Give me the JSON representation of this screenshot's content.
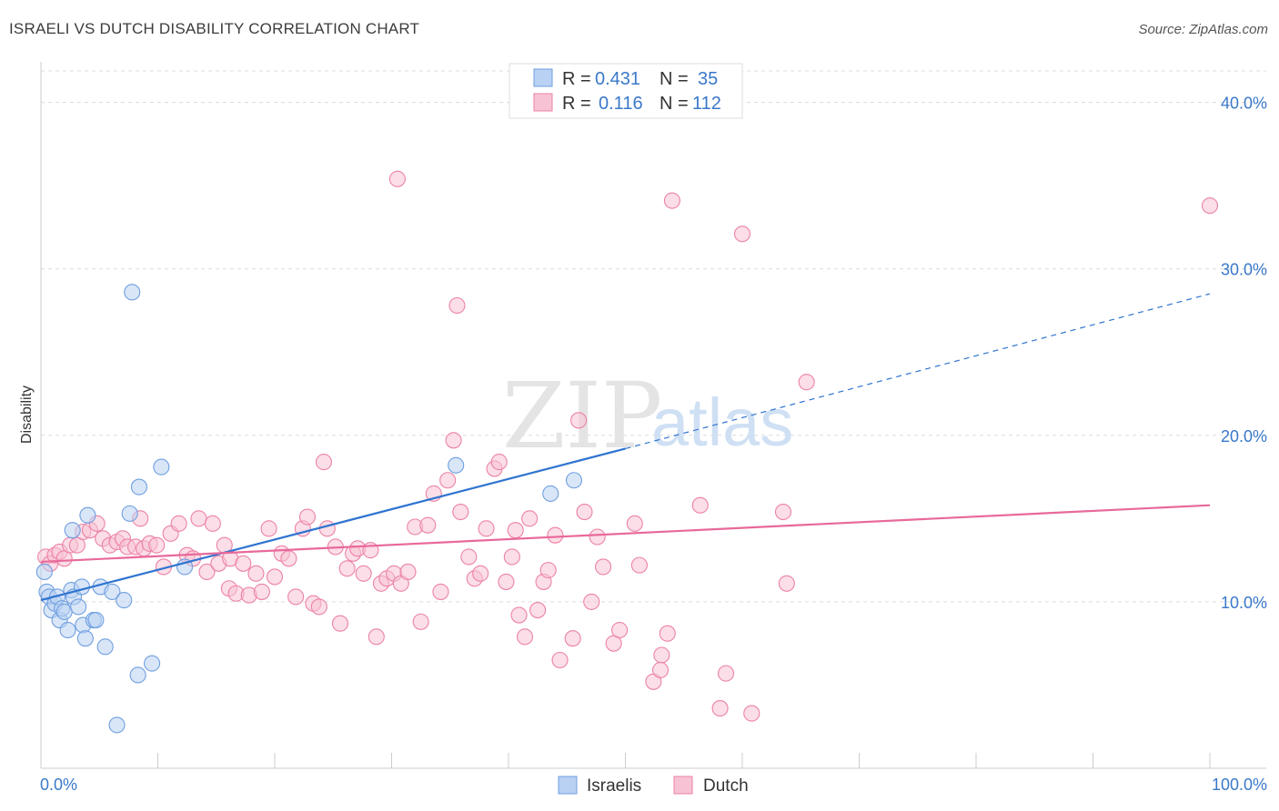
{
  "header": {
    "title": "ISRAELI VS DUTCH DISABILITY CORRELATION CHART",
    "source": "Source: ZipAtlas.com"
  },
  "watermark": {
    "zip": "ZIP",
    "atlas": "atlas"
  },
  "colors": {
    "israelis": "#6f9fe0",
    "israelis_fill": "#b9d1f3",
    "dutch": "#ec82a6",
    "dutch_fill": "#f7c3d4",
    "israelis_line": "#2f74d0",
    "dutch_line": "#e8699a",
    "accent_text": "#3a78c9"
  },
  "legend": {
    "rows": [
      {
        "series": "israelis",
        "r_label": "R =",
        "r_value": "0.431",
        "n_label": "N =",
        "n_value": "35"
      },
      {
        "series": "dutch",
        "r_label": "R =",
        "r_value": "0.116",
        "n_label": "N =",
        "n_value": "112"
      }
    ]
  },
  "bottom_legend": [
    {
      "series": "israelis",
      "label": "Israelis"
    },
    {
      "series": "dutch",
      "label": "Dutch"
    }
  ],
  "chart_data": {
    "type": "scatter",
    "title": "ISRAELI VS DUTCH DISABILITY CORRELATION CHART",
    "xlabel": "",
    "ylabel": "Disability",
    "xlim": [
      0,
      100
    ],
    "ylim": [
      0,
      42
    ],
    "x_tick_labels": [
      "0.0%",
      "100.0%"
    ],
    "y_ticks": [
      10,
      20,
      30,
      40
    ],
    "y_tick_labels": [
      "10.0%",
      "20.0%",
      "30.0%",
      "40.0%"
    ],
    "grid": true,
    "legend_position": "top-center",
    "series": [
      {
        "name": "Israelis",
        "key": "israelis",
        "trend": {
          "x0": 0,
          "y0": 10.1,
          "x1": 50,
          "y1": 19.2,
          "dashed_to_x": 100,
          "dashed_to_y": 28.5
        },
        "points": [
          [
            0.3,
            11.8
          ],
          [
            0.5,
            10.6
          ],
          [
            0.7,
            10.3
          ],
          [
            0.9,
            9.5
          ],
          [
            1.2,
            9.9
          ],
          [
            1.4,
            10.3
          ],
          [
            1.6,
            8.9
          ],
          [
            1.8,
            9.6
          ],
          [
            2.0,
            9.4
          ],
          [
            2.3,
            8.3
          ],
          [
            2.6,
            10.7
          ],
          [
            2.7,
            14.3
          ],
          [
            2.8,
            10.3
          ],
          [
            3.2,
            9.7
          ],
          [
            3.5,
            10.9
          ],
          [
            3.6,
            8.6
          ],
          [
            3.8,
            7.8
          ],
          [
            4.0,
            15.2
          ],
          [
            4.5,
            8.9
          ],
          [
            4.7,
            8.9
          ],
          [
            5.1,
            10.9
          ],
          [
            5.5,
            7.3
          ],
          [
            6.1,
            10.6
          ],
          [
            7.1,
            10.1
          ],
          [
            7.6,
            15.3
          ],
          [
            7.8,
            28.6
          ],
          [
            8.3,
            5.6
          ],
          [
            8.4,
            16.9
          ],
          [
            9.5,
            6.3
          ],
          [
            10.3,
            18.1
          ],
          [
            12.3,
            12.1
          ],
          [
            35.5,
            18.2
          ],
          [
            43.6,
            16.5
          ],
          [
            45.6,
            17.3
          ],
          [
            6.5,
            2.6
          ]
        ]
      },
      {
        "name": "Dutch",
        "key": "dutch",
        "trend": {
          "x0": 0,
          "y0": 12.4,
          "x1": 100,
          "y1": 15.8
        },
        "points": [
          [
            0.4,
            12.7
          ],
          [
            0.8,
            12.3
          ],
          [
            1.2,
            12.8
          ],
          [
            1.6,
            13.0
          ],
          [
            2.0,
            12.6
          ],
          [
            2.5,
            13.4
          ],
          [
            3.1,
            13.4
          ],
          [
            3.6,
            14.2
          ],
          [
            4.2,
            14.3
          ],
          [
            4.8,
            14.7
          ],
          [
            5.3,
            13.8
          ],
          [
            5.9,
            13.4
          ],
          [
            6.5,
            13.6
          ],
          [
            7.0,
            13.8
          ],
          [
            7.4,
            13.3
          ],
          [
            8.1,
            13.3
          ],
          [
            8.5,
            15.0
          ],
          [
            8.8,
            13.2
          ],
          [
            9.3,
            13.5
          ],
          [
            9.9,
            13.4
          ],
          [
            10.5,
            12.1
          ],
          [
            11.1,
            14.1
          ],
          [
            11.8,
            14.7
          ],
          [
            12.5,
            12.8
          ],
          [
            13.0,
            12.6
          ],
          [
            13.5,
            15.0
          ],
          [
            14.2,
            11.8
          ],
          [
            14.7,
            14.7
          ],
          [
            15.2,
            12.3
          ],
          [
            15.7,
            13.4
          ],
          [
            16.2,
            12.6
          ],
          [
            16.1,
            10.8
          ],
          [
            16.7,
            10.5
          ],
          [
            17.3,
            12.3
          ],
          [
            17.8,
            10.4
          ],
          [
            18.4,
            11.7
          ],
          [
            18.9,
            10.6
          ],
          [
            19.5,
            14.4
          ],
          [
            20.0,
            11.5
          ],
          [
            20.6,
            12.9
          ],
          [
            21.2,
            12.6
          ],
          [
            21.8,
            10.3
          ],
          [
            22.4,
            14.4
          ],
          [
            22.8,
            15.1
          ],
          [
            23.3,
            9.9
          ],
          [
            23.8,
            9.7
          ],
          [
            24.5,
            14.4
          ],
          [
            24.2,
            18.4
          ],
          [
            25.2,
            13.3
          ],
          [
            25.6,
            8.7
          ],
          [
            26.2,
            12.0
          ],
          [
            26.7,
            12.9
          ],
          [
            27.1,
            13.2
          ],
          [
            27.6,
            11.7
          ],
          [
            28.2,
            13.1
          ],
          [
            28.7,
            7.9
          ],
          [
            29.1,
            11.1
          ],
          [
            29.6,
            11.4
          ],
          [
            30.2,
            11.7
          ],
          [
            30.8,
            11.1
          ],
          [
            31.4,
            11.8
          ],
          [
            32.0,
            14.5
          ],
          [
            32.5,
            8.8
          ],
          [
            33.1,
            14.6
          ],
          [
            33.6,
            16.5
          ],
          [
            34.2,
            10.6
          ],
          [
            34.8,
            17.3
          ],
          [
            35.3,
            19.7
          ],
          [
            35.6,
            27.8
          ],
          [
            35.9,
            15.4
          ],
          [
            36.6,
            12.7
          ],
          [
            37.1,
            11.4
          ],
          [
            37.6,
            11.7
          ],
          [
            38.1,
            14.4
          ],
          [
            38.8,
            18.0
          ],
          [
            39.2,
            18.4
          ],
          [
            39.8,
            11.2
          ],
          [
            40.3,
            12.7
          ],
          [
            40.6,
            14.3
          ],
          [
            40.9,
            9.2
          ],
          [
            41.4,
            7.9
          ],
          [
            41.8,
            15.0
          ],
          [
            42.5,
            9.5
          ],
          [
            43.0,
            11.2
          ],
          [
            43.4,
            11.9
          ],
          [
            44.0,
            14.0
          ],
          [
            44.4,
            6.5
          ],
          [
            45.5,
            7.8
          ],
          [
            46.5,
            15.4
          ],
          [
            47.1,
            10.0
          ],
          [
            47.6,
            13.9
          ],
          [
            48.1,
            12.1
          ],
          [
            49.0,
            7.5
          ],
          [
            49.5,
            8.3
          ],
          [
            50.8,
            14.7
          ],
          [
            51.2,
            12.2
          ],
          [
            52.4,
            5.2
          ],
          [
            53.1,
            6.8
          ],
          [
            53.6,
            8.1
          ],
          [
            53.0,
            5.9
          ],
          [
            54.0,
            34.1
          ],
          [
            56.4,
            15.8
          ],
          [
            58.1,
            3.6
          ],
          [
            58.6,
            5.7
          ],
          [
            60.0,
            32.1
          ],
          [
            60.8,
            3.3
          ],
          [
            63.5,
            15.4
          ],
          [
            63.8,
            11.1
          ],
          [
            65.5,
            23.2
          ],
          [
            30.5,
            35.4
          ],
          [
            46.0,
            20.9
          ],
          [
            100.0,
            33.8
          ]
        ]
      }
    ]
  }
}
